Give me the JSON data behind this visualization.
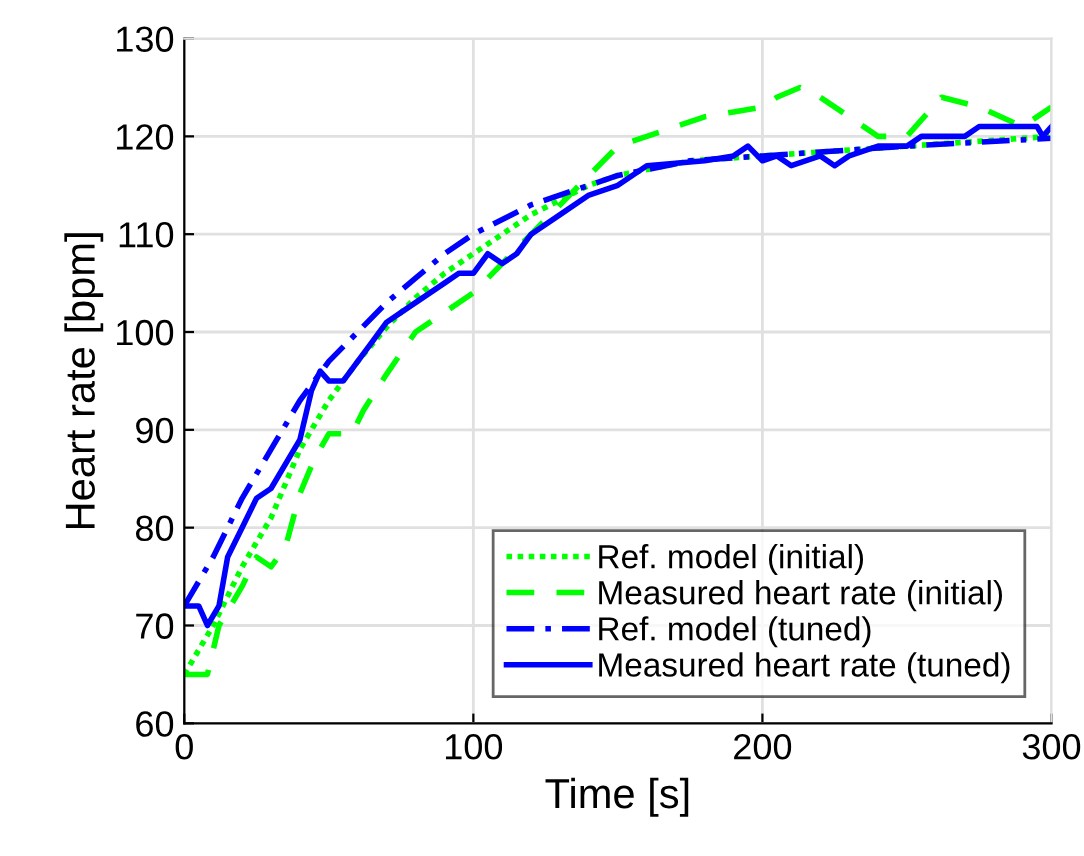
{
  "chart_data": {
    "type": "line",
    "xlabel": "Time [s]",
    "ylabel": "Heart rate [bpm]",
    "xlim": [
      0,
      300
    ],
    "ylim": [
      60,
      130
    ],
    "xticks": [
      0,
      100,
      200,
      300
    ],
    "yticks": [
      60,
      70,
      80,
      90,
      100,
      110,
      120,
      130
    ],
    "grid": true,
    "legend": "bottom right",
    "series": [
      {
        "name": "Ref. model (initial)",
        "color": "#00ff00",
        "line_style": "dotted",
        "x": [
          0,
          5,
          10,
          15,
          20,
          30,
          40,
          50,
          60,
          70,
          80,
          90,
          100,
          120,
          140,
          150,
          175,
          200,
          250,
          300
        ],
        "values": [
          65,
          67.5,
          70,
          73,
          76,
          81,
          88,
          93,
          97,
          100.5,
          103.5,
          106,
          108,
          112,
          115,
          116,
          117.5,
          118,
          119,
          120
        ]
      },
      {
        "name": "Measured heart rate (initial)",
        "color": "#00ff00",
        "line_style": "dashed",
        "x": [
          0,
          8,
          12,
          20,
          25,
          30,
          35,
          40,
          45,
          50,
          58,
          62,
          70,
          80,
          90,
          100,
          110,
          120,
          130,
          140,
          150,
          160,
          170,
          180,
          190,
          200,
          205,
          213,
          220,
          230,
          240,
          250,
          262,
          275,
          290,
          300
        ],
        "values": [
          65,
          65,
          70,
          74,
          77,
          76,
          78,
          83.5,
          87,
          89.6,
          89.6,
          92,
          95.7,
          100,
          102,
          104,
          107,
          110,
          113,
          116,
          119,
          120,
          121,
          122,
          122.5,
          123,
          124,
          125,
          124,
          122,
          120,
          120,
          124,
          123,
          121,
          123
        ]
      },
      {
        "name": "Ref. model (tuned)",
        "color": "#0000ff",
        "line_style": "dashdot",
        "x": [
          0,
          5,
          10,
          15,
          20,
          30,
          40,
          50,
          60,
          70,
          80,
          90,
          100,
          120,
          140,
          150,
          175,
          200,
          250,
          300
        ],
        "values": [
          72,
          74.5,
          77,
          80,
          83,
          88,
          93,
          97,
          100,
          103,
          105.5,
          108,
          110,
          113,
          115,
          116,
          117.5,
          118,
          119,
          119.8
        ]
      },
      {
        "name": "Measured heart rate (tuned)",
        "color": "#0000ff",
        "line_style": "solid",
        "x": [
          0,
          5,
          8,
          12,
          15,
          20,
          25,
          30,
          40,
          44,
          47,
          50,
          55,
          60,
          65,
          70,
          80,
          90,
          95,
          100,
          105,
          110,
          115,
          120,
          130,
          140,
          150,
          160,
          180,
          190,
          195,
          200,
          205,
          210,
          220,
          225,
          230,
          240,
          250,
          255,
          270,
          275,
          295,
          297,
          300
        ],
        "values": [
          72,
          72,
          70,
          72,
          77,
          80,
          83,
          84,
          89,
          94,
          96,
          95,
          95,
          97,
          99,
          101,
          103,
          105,
          106,
          106,
          108,
          107,
          108,
          110,
          112,
          114,
          115,
          117,
          117.5,
          118,
          119,
          117.5,
          118,
          117,
          118,
          117,
          118,
          119,
          119,
          120,
          120,
          121,
          121,
          120,
          121
        ]
      }
    ]
  }
}
